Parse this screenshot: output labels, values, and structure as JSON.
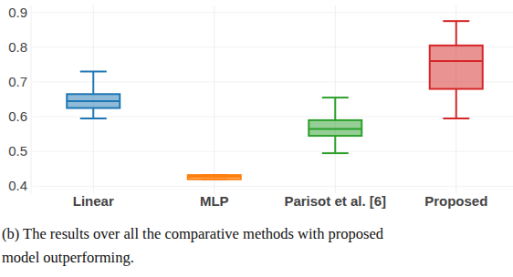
{
  "chart_data": {
    "type": "box",
    "categories": [
      "Linear",
      "MLP",
      "Parisot et al. [6]",
      "Proposed"
    ],
    "colors": [
      "#1f77b4",
      "#ff7f0e",
      "#2ca02c",
      "#d62728"
    ],
    "min": [
      0.595,
      0.42,
      0.495,
      0.595
    ],
    "q1": [
      0.625,
      0.42,
      0.545,
      0.68
    ],
    "median": [
      0.645,
      0.427,
      0.565,
      0.76
    ],
    "q3": [
      0.665,
      0.432,
      0.59,
      0.805
    ],
    "max": [
      0.73,
      0.432,
      0.655,
      0.875
    ],
    "ylim": [
      0.38,
      0.92
    ],
    "yticks": [
      0.4,
      0.5,
      0.6,
      0.7,
      0.8,
      0.9
    ],
    "grid": true,
    "caption": [
      "(b)  The results over all the comparative methods with proposed",
      "model outperforming."
    ]
  }
}
